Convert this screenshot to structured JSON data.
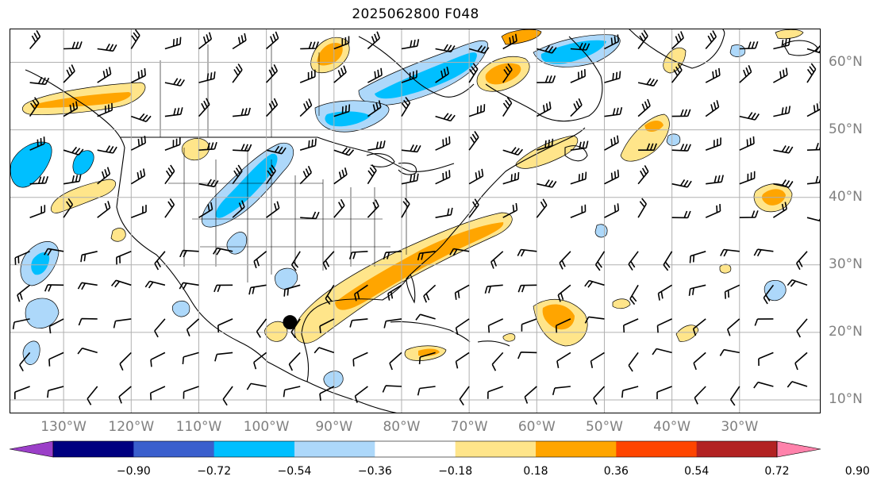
{
  "title": "2025062800 F048",
  "map": {
    "lon_range": [
      -138,
      -18
    ],
    "lat_range": [
      8,
      65
    ],
    "lon_labels": [
      "130°W",
      "120°W",
      "110°W",
      "100°W",
      "90°W",
      "80°W",
      "70°W",
      "60°W",
      "50°W",
      "40°W",
      "30°W"
    ],
    "lon_values": [
      -130,
      -120,
      -110,
      -100,
      -90,
      -80,
      -70,
      -60,
      -50,
      -40,
      -30
    ],
    "lat_labels": [
      "60°N",
      "50°N",
      "40°N",
      "30°N",
      "20°N",
      "10°N"
    ],
    "lat_values": [
      60,
      50,
      40,
      30,
      20,
      10
    ],
    "grid": true,
    "gridline_color": "#b0b0b0",
    "coastline_color": "#000000",
    "storm_marker": {
      "lon": -96.5,
      "lat": 21.5
    }
  },
  "colorbar": {
    "tick_labels": [
      "−0.90",
      "−0.72",
      "−0.54",
      "−0.36",
      "−0.18",
      "0.18",
      "0.36",
      "0.54",
      "0.72",
      "0.90"
    ],
    "colors": [
      "#9b3fc8",
      "#000080",
      "#3a5fcd",
      "#00bfff",
      "#add8fa",
      "#ffffff",
      "#ffe58a",
      "#ffa500",
      "#ff4500",
      "#b22222",
      "#ff82ab"
    ],
    "extend": "both"
  },
  "colors": {
    "neg_strong": "#00bfff",
    "neg_weak": "#add8fa",
    "pos_weak": "#ffe58a",
    "pos_strong": "#ffa500",
    "contour": "#000000"
  }
}
